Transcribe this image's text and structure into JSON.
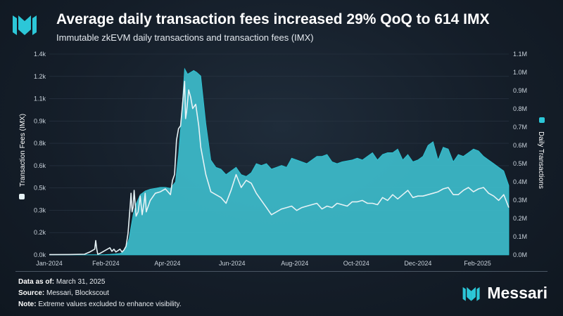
{
  "header": {
    "title": "Average daily transaction fees increased 29% QoQ to 614 IMX",
    "subtitle": "Immutable zkEVM daily transactions and transaction fees (IMX)"
  },
  "footer": {
    "data_as_of_label": "Data as of:",
    "data_as_of_value": "March 31, 2025",
    "source_label": "Source:",
    "source_value": "Messari, Blockscout",
    "note_label": "Note:",
    "note_value": "Extreme values excluded to enhance visibility.",
    "brand": "Messari"
  },
  "colors": {
    "area": "#3dbccb",
    "line": "#e6f2f5",
    "axis_text": "#c9d2db",
    "accent": "#2cc7d8"
  },
  "chart_data": {
    "type": "area",
    "title": "Immutable zkEVM daily transactions and transaction fees (IMX)",
    "x_ticks": [
      "Jan-2024",
      "Feb-2024",
      "Apr-2024",
      "Jun-2024",
      "Aug-2024",
      "Oct-2024",
      "Dec-2024",
      "Feb-2025"
    ],
    "xlabel": "",
    "ylabel_left": "Transaction Fees (IMX)",
    "ylabel_right": "Daily Transactions",
    "y_left_ticks": [
      "0.0k",
      "0.2k",
      "0.3k",
      "0.5k",
      "0.6k",
      "0.8k",
      "0.9k",
      "1.1k",
      "1.2k",
      "1.4k"
    ],
    "y_right_ticks": [
      "0.0M",
      "0.1M",
      "0.2M",
      "0.3M",
      "0.4M",
      "0.5M",
      "0.6M",
      "0.7M",
      "0.8M",
      "0.9M",
      "1.0M",
      "1.1M"
    ],
    "ylim_left": [
      0,
      1400
    ],
    "ylim_right": [
      0,
      1100000
    ],
    "series": [
      {
        "name": "Daily Transactions",
        "axis": "right",
        "style": "area",
        "x_day": [
          0,
          20,
          40,
          55,
          60,
          65,
          70,
          72,
          76,
          79,
          83,
          86,
          90,
          95,
          100,
          105,
          110,
          115,
          120,
          125,
          128,
          131,
          134,
          137,
          140,
          143,
          146,
          150,
          155,
          160,
          165,
          170,
          175,
          180,
          185,
          190,
          195,
          200,
          205,
          210,
          215,
          220,
          225,
          230,
          235,
          240,
          245,
          250,
          255,
          260,
          265,
          270,
          275,
          280,
          285,
          290,
          300,
          305,
          310,
          315,
          320,
          325,
          330,
          335,
          340,
          345,
          350,
          355,
          360,
          365,
          370,
          375,
          380,
          385,
          390,
          395,
          400,
          405,
          410,
          415,
          420,
          425,
          430,
          435,
          440,
          445,
          450,
          455
        ],
        "values": [
          0,
          0,
          1000,
          2000,
          3000,
          5000,
          8000,
          12000,
          40000,
          90000,
          220000,
          280000,
          330000,
          350000,
          360000,
          365000,
          370000,
          370000,
          365000,
          400000,
          550000,
          760000,
          1020000,
          990000,
          1000000,
          1010000,
          1000000,
          980000,
          720000,
          520000,
          480000,
          470000,
          440000,
          460000,
          480000,
          440000,
          430000,
          450000,
          500000,
          490000,
          500000,
          470000,
          480000,
          490000,
          480000,
          530000,
          520000,
          510000,
          500000,
          520000,
          540000,
          540000,
          550000,
          510000,
          500000,
          510000,
          520000,
          530000,
          520000,
          540000,
          560000,
          520000,
          550000,
          560000,
          560000,
          580000,
          520000,
          550000,
          510000,
          520000,
          540000,
          600000,
          620000,
          520000,
          590000,
          580000,
          510000,
          550000,
          540000,
          560000,
          580000,
          570000,
          540000,
          520000,
          500000,
          480000,
          460000,
          380000
        ]
      },
      {
        "name": "Transaction Fees (IMX)",
        "axis": "left",
        "style": "line",
        "x_day": [
          0,
          20,
          35,
          40,
          45,
          46,
          47,
          48,
          50,
          55,
          60,
          62,
          64,
          66,
          70,
          72,
          74,
          76,
          78,
          80,
          81,
          82,
          83,
          84,
          86,
          88,
          90,
          92,
          94,
          95,
          96,
          100,
          105,
          110,
          115,
          120,
          122,
          124,
          126,
          128,
          130,
          132,
          134,
          135,
          136,
          138,
          140,
          142,
          145,
          148,
          150,
          155,
          160,
          165,
          170,
          175,
          180,
          185,
          190,
          195,
          200,
          205,
          210,
          215,
          220,
          225,
          230,
          235,
          240,
          245,
          250,
          255,
          260,
          265,
          270,
          275,
          280,
          285,
          290,
          295,
          300,
          305,
          310,
          315,
          320,
          325,
          330,
          335,
          340,
          345,
          350,
          355,
          360,
          365,
          370,
          375,
          380,
          385,
          390,
          395,
          400,
          405,
          410,
          415,
          420,
          425,
          430,
          435,
          440,
          445,
          450,
          455
        ],
        "values": [
          2,
          3,
          5,
          20,
          40,
          100,
          40,
          5,
          10,
          30,
          50,
          25,
          40,
          20,
          40,
          20,
          35,
          60,
          150,
          330,
          430,
          300,
          330,
          450,
          270,
          300,
          410,
          280,
          370,
          430,
          300,
          380,
          430,
          440,
          460,
          420,
          520,
          560,
          800,
          880,
          900,
          1050,
          1210,
          950,
          1000,
          1150,
          1100,
          1020,
          1050,
          900,
          750,
          560,
          440,
          420,
          400,
          360,
          450,
          560,
          470,
          520,
          500,
          430,
          380,
          330,
          280,
          300,
          320,
          330,
          340,
          310,
          330,
          340,
          350,
          360,
          320,
          340,
          330,
          360,
          350,
          340,
          370,
          370,
          380,
          360,
          360,
          350,
          400,
          380,
          420,
          390,
          420,
          450,
          400,
          410,
          410,
          420,
          430,
          440,
          460,
          470,
          420,
          420,
          450,
          470,
          440,
          460,
          470,
          430,
          410,
          380,
          420,
          330
        ]
      }
    ]
  }
}
